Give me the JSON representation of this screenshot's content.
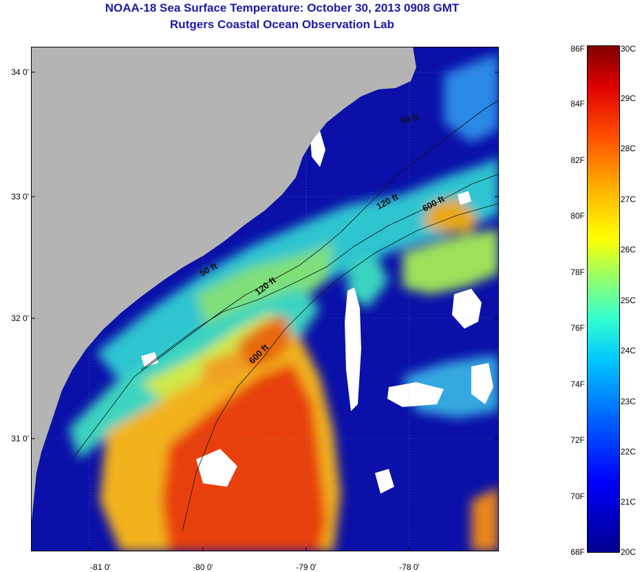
{
  "header": {
    "title": "NOAA-18 Sea Surface Temperature:  October 30, 2013 0908 GMT",
    "subtitle": "Rutgers Coastal Ocean Observation Lab"
  },
  "map": {
    "lat_labels": [
      "34 0'",
      "33 0'",
      "32 0'",
      "31 0'"
    ],
    "lon_labels": [
      "-81 0'",
      "-80 0'",
      "-79 0'",
      "-78 0'"
    ],
    "contour_labels": [
      "50 ft",
      "50 ft",
      "120 ft",
      "120 ft",
      "600 ft",
      "600 ft"
    ],
    "colors": {
      "land": "#b4b4b4",
      "cold": "#0a10a8",
      "warm": "#e8240e"
    }
  },
  "colorbar": {
    "fahrenheit_labels": [
      "86F",
      "84F",
      "82F",
      "80F",
      "78F",
      "76F",
      "74F",
      "72F",
      "70F",
      "68F"
    ],
    "celsius_labels": [
      "30C",
      "29C",
      "28C",
      "27C",
      "26C",
      "25C",
      "24C",
      "23C",
      "22C",
      "21C",
      "20C"
    ]
  }
}
